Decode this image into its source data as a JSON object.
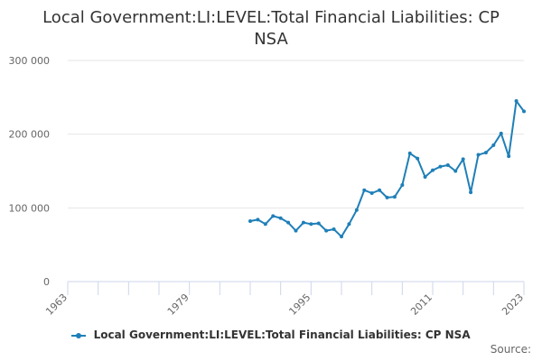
{
  "chart_data": {
    "type": "line",
    "title_lines": [
      "Local Government:LI:LEVEL:Total Financial Liabilities: CP",
      "NSA"
    ],
    "xlabel": "",
    "ylabel": "",
    "xlim": [
      1963,
      2023
    ],
    "ylim": [
      0,
      300000
    ],
    "x_ticks": [
      1963,
      1979,
      1995,
      2011,
      2023
    ],
    "x_tick_labels": [
      "1963",
      "1979",
      "1995",
      "2011",
      "2023"
    ],
    "y_ticks": [
      0,
      100000,
      200000,
      300000
    ],
    "y_tick_labels": [
      "0",
      "100 000",
      "200 000",
      "300 000"
    ],
    "grid": "horizontal",
    "legend_position": "bottom",
    "series": [
      {
        "name": "Local Government:LI:LEVEL:Total Financial Liabilities: CP NSA",
        "color": "#1f7fb8",
        "x": [
          1987,
          1988,
          1989,
          1990,
          1991,
          1992,
          1993,
          1994,
          1995,
          1996,
          1997,
          1998,
          1999,
          2000,
          2001,
          2002,
          2003,
          2004,
          2005,
          2006,
          2007,
          2008,
          2009,
          2010,
          2011,
          2012,
          2013,
          2014,
          2015,
          2016,
          2017,
          2018,
          2019,
          2020,
          2021,
          2022,
          2023
        ],
        "y": [
          82000,
          84000,
          78000,
          89000,
          86000,
          80000,
          69000,
          80000,
          78000,
          79000,
          69000,
          71000,
          61000,
          78000,
          97000,
          124000,
          120000,
          124000,
          114000,
          115000,
          131000,
          174000,
          167000,
          142000,
          151000,
          156000,
          158000,
          150000,
          166000,
          121000,
          172000,
          175000,
          185000,
          201000,
          170000,
          245000,
          231000
        ]
      }
    ]
  },
  "source_label": "Source:"
}
